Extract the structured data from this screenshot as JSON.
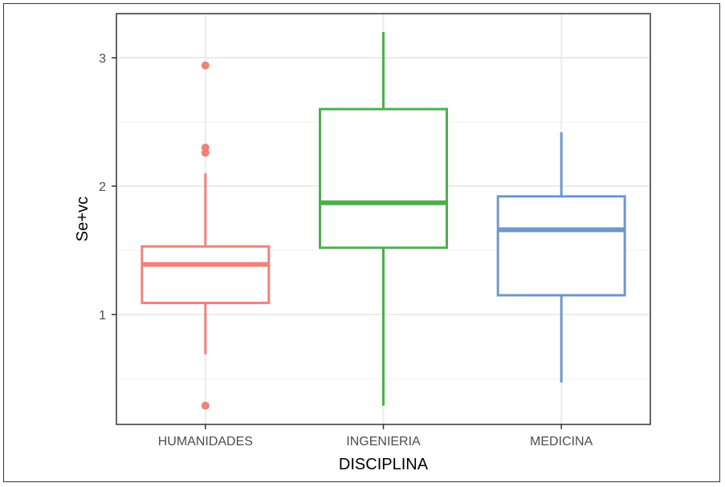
{
  "chart_data": {
    "type": "boxplot",
    "title": "",
    "xlabel": "DISCIPLINA",
    "ylabel": "Se+vc",
    "ylim": [
      0.2,
      3.35
    ],
    "y_ticks": [
      1,
      2,
      3
    ],
    "y_minor_ticks": [
      0.5,
      1.5,
      2.5
    ],
    "y_tick_labels": [
      "1",
      "2",
      "3"
    ],
    "grid": true,
    "categories": [
      "HUMANIDADES",
      "INGENIERIA",
      "MEDICINA"
    ],
    "series": [
      {
        "name": "HUMANIDADES",
        "color": "#F0827A",
        "whisker_low": 0.69,
        "q1": 1.09,
        "median": 1.39,
        "q3": 1.53,
        "whisker_high": 2.1,
        "outliers": [
          2.94,
          2.3,
          2.26,
          0.29
        ]
      },
      {
        "name": "INGENIERIA",
        "color": "#4CB04C",
        "whisker_low": 0.29,
        "q1": 1.52,
        "median": 1.87,
        "q3": 2.6,
        "whisker_high": 3.2,
        "outliers": []
      },
      {
        "name": "MEDICINA",
        "color": "#6E97CF",
        "whisker_low": 0.47,
        "q1": 1.15,
        "median": 1.66,
        "q3": 1.92,
        "whisker_high": 2.42,
        "outliers": []
      }
    ]
  }
}
